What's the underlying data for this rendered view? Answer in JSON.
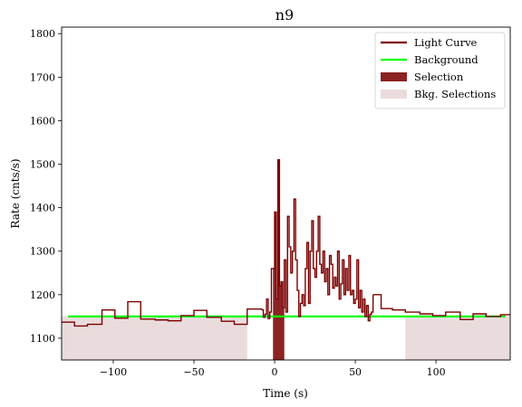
{
  "chart_data": {
    "type": "line",
    "title": "n9",
    "xlabel": "Time (s)",
    "ylabel": "Rate (cnts/s)",
    "xlim": [
      -132,
      146
    ],
    "ylim": [
      1050,
      1815
    ],
    "xticks": [
      -100,
      -50,
      0,
      50,
      100
    ],
    "yticks": [
      1100,
      1200,
      1300,
      1400,
      1500,
      1600,
      1700,
      1800
    ],
    "grid": false,
    "legend_position": "top-right",
    "legend": [
      {
        "label": "Light Curve",
        "color": "#7b0000",
        "kind": "line"
      },
      {
        "label": "Background",
        "color": "#00ff00",
        "kind": "line"
      },
      {
        "label": "Selection",
        "color": "#8b2323",
        "kind": "patch"
      },
      {
        "label": "Bkg. Selections",
        "color": "#eadcdc",
        "kind": "patch"
      }
    ],
    "background": {
      "x": [
        -128,
        143
      ],
      "y": [
        1150,
        1150
      ]
    },
    "selection": {
      "x": [
        -1,
        6
      ]
    },
    "bkg_selections": [
      {
        "x": [
          -132,
          -17
        ]
      },
      {
        "x": [
          81,
          146
        ]
      }
    ],
    "light_curve": {
      "coarse_pre": [
        [
          -132,
          1137
        ],
        [
          -124,
          1128
        ],
        [
          -116,
          1132
        ],
        [
          -107,
          1165
        ],
        [
          -99,
          1146
        ],
        [
          -91,
          1184
        ],
        [
          -83,
          1144
        ],
        [
          -74,
          1142
        ],
        [
          -66,
          1140
        ],
        [
          -58,
          1152
        ],
        [
          -50,
          1164
        ],
        [
          -42,
          1148
        ],
        [
          -33,
          1139
        ],
        [
          -25,
          1132
        ],
        [
          -17,
          1167
        ],
        [
          -8,
          1165
        ]
      ],
      "fine": [
        [
          -8,
          1165
        ],
        [
          -7,
          1148
        ],
        [
          -6,
          1155
        ],
        [
          -5,
          1190
        ],
        [
          -4,
          1145
        ],
        [
          -3,
          1160
        ],
        [
          -2,
          1260
        ],
        [
          -1,
          1260
        ],
        [
          0,
          1390
        ],
        [
          1,
          1190
        ],
        [
          2,
          1510
        ],
        [
          3,
          1220
        ],
        [
          4,
          1230
        ],
        [
          5,
          1170
        ],
        [
          6,
          1280
        ],
        [
          7,
          1160
        ],
        [
          8,
          1380
        ],
        [
          9,
          1310
        ],
        [
          10,
          1250
        ],
        [
          11,
          1300
        ],
        [
          12,
          1420
        ],
        [
          13,
          1280
        ],
        [
          14,
          1210
        ],
        [
          15,
          1150
        ],
        [
          16,
          1180
        ],
        [
          17,
          1200
        ],
        [
          18,
          1175
        ],
        [
          19,
          1260
        ],
        [
          20,
          1320
        ],
        [
          21,
          1180
        ],
        [
          22,
          1300
        ],
        [
          23,
          1370
        ],
        [
          24,
          1260
        ],
        [
          25,
          1240
        ],
        [
          26,
          1300
        ],
        [
          27,
          1380
        ],
        [
          28,
          1270
        ],
        [
          29,
          1250
        ],
        [
          30,
          1300
        ],
        [
          31,
          1230
        ],
        [
          32,
          1260
        ],
        [
          33,
          1200
        ],
        [
          34,
          1290
        ],
        [
          35,
          1270
        ],
        [
          36,
          1215
        ],
        [
          37,
          1240
        ],
        [
          38,
          1220
        ],
        [
          39,
          1300
        ],
        [
          40,
          1190
        ],
        [
          41,
          1225
        ],
        [
          42,
          1280
        ],
        [
          43,
          1200
        ],
        [
          44,
          1260
        ],
        [
          45,
          1210
        ],
        [
          46,
          1290
        ],
        [
          47,
          1200
        ],
        [
          48,
          1210
        ],
        [
          49,
          1180
        ],
        [
          50,
          1190
        ],
        [
          51,
          1280
        ],
        [
          52,
          1170
        ],
        [
          53,
          1210
        ],
        [
          54,
          1160
        ],
        [
          55,
          1190
        ],
        [
          56,
          1150
        ],
        [
          57,
          1175
        ],
        [
          58,
          1140
        ],
        [
          59,
          1155
        ],
        [
          60,
          1160
        ],
        [
          61,
          1200
        ]
      ],
      "coarse_post": [
        [
          61,
          1200
        ],
        [
          66,
          1168
        ],
        [
          73,
          1165
        ],
        [
          81,
          1160
        ],
        [
          90,
          1156
        ],
        [
          98,
          1152
        ],
        [
          106,
          1160
        ],
        [
          115,
          1143
        ],
        [
          123,
          1156
        ],
        [
          131,
          1150
        ],
        [
          140,
          1154
        ],
        [
          146,
          1154
        ]
      ]
    }
  }
}
